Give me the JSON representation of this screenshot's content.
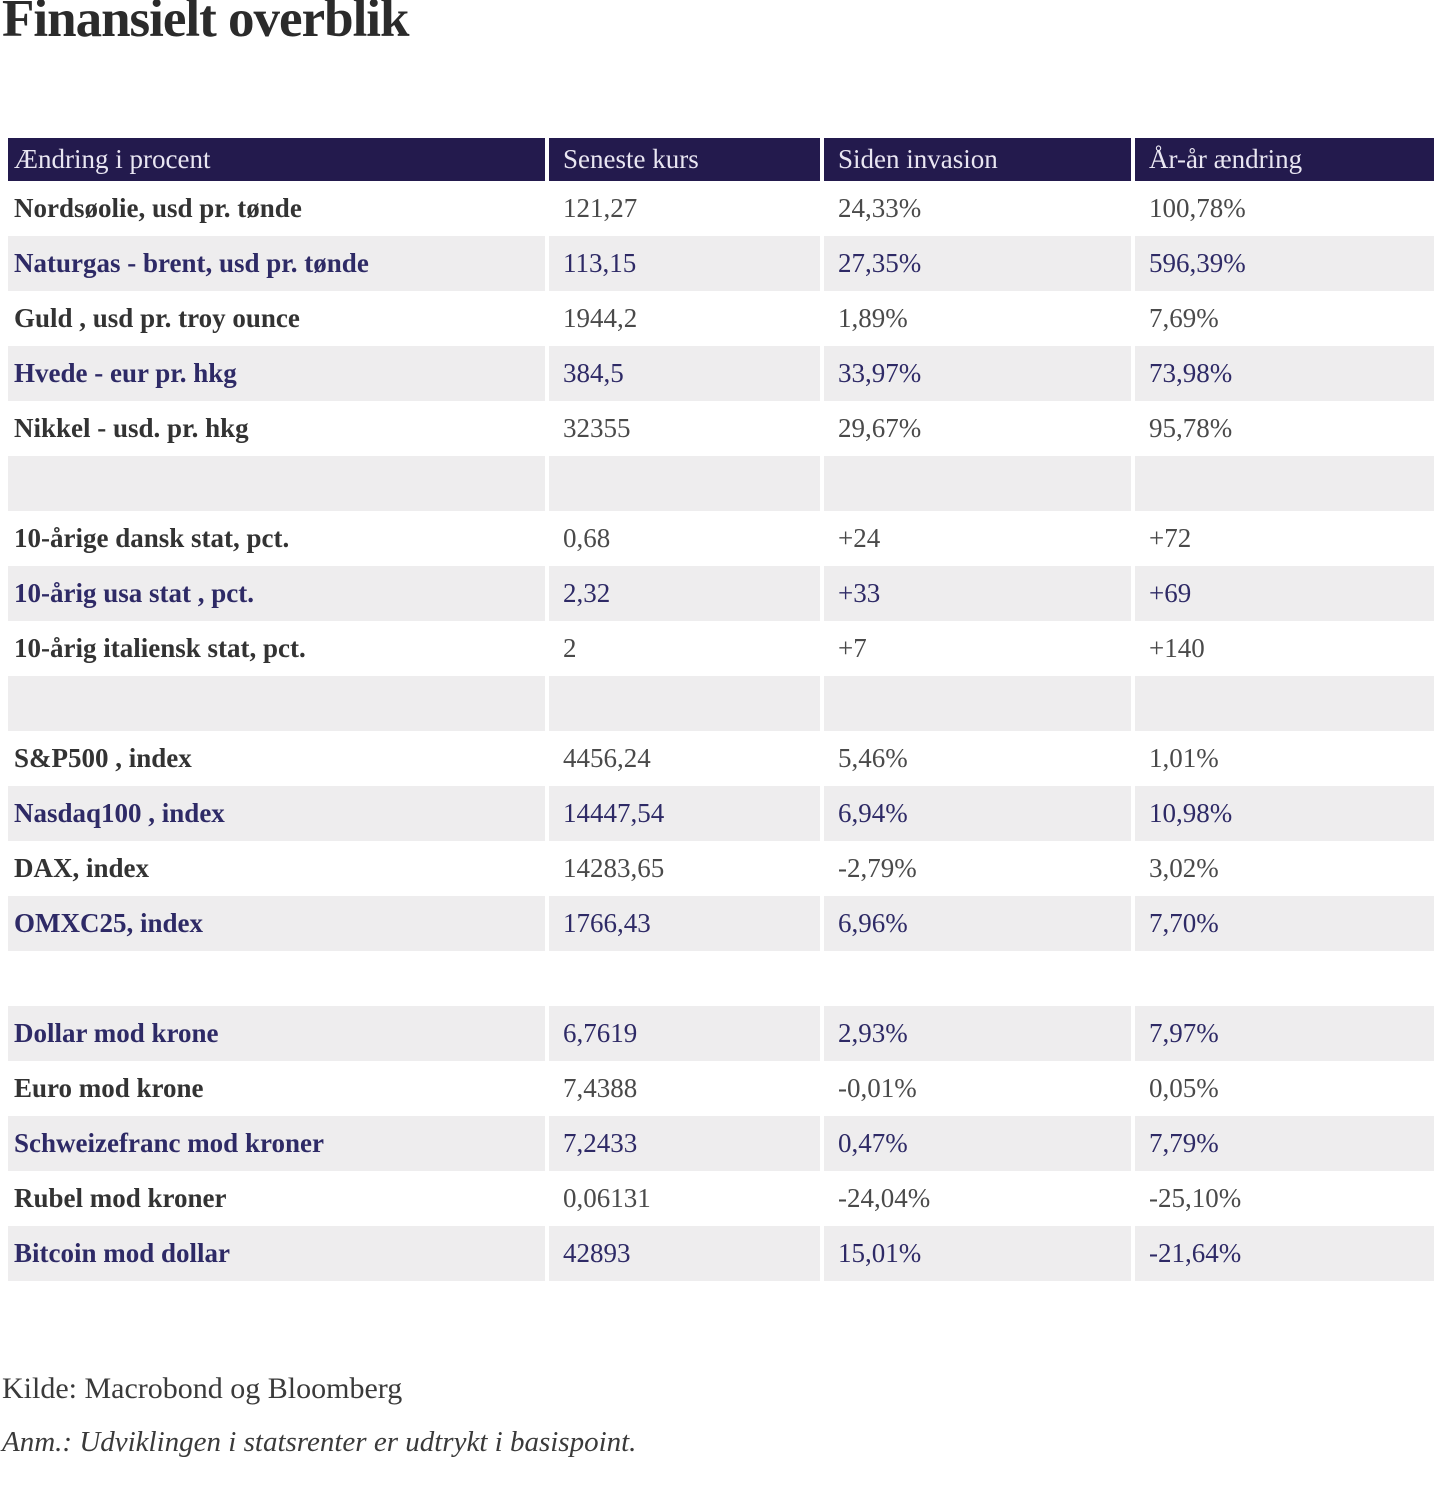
{
  "page": {
    "title": "Finansielt overblik"
  },
  "chart_data": {
    "type": "table",
    "title": "Finansielt overblik",
    "columns": [
      "Ændring i procent",
      "Seneste kurs",
      "Siden invasion",
      "År-år ændring"
    ],
    "rows": [
      {
        "label": "Nordsøolie, usd pr. tønde",
        "kurs": "121,27",
        "invasion": "24,33%",
        "aar": "100,78%"
      },
      {
        "label": "Naturgas - brent, usd pr. tønde",
        "kurs": "113,15",
        "invasion": "27,35%",
        "aar": "596,39%"
      },
      {
        "label": "Guld , usd pr. troy ounce",
        "kurs": "1944,2",
        "invasion": "1,89%",
        "aar": "7,69%"
      },
      {
        "label": "Hvede - eur pr. hkg",
        "kurs": "384,5",
        "invasion": "33,97%",
        "aar": "73,98%"
      },
      {
        "label": "Nikkel - usd. pr. hkg",
        "kurs": "32355",
        "invasion": "29,67%",
        "aar": "95,78%"
      },
      {
        "spacer": true
      },
      {
        "label": "10-årige dansk stat, pct.",
        "kurs": "0,68",
        "invasion": "+24",
        "aar": "+72"
      },
      {
        "label": "10-årig usa stat , pct.",
        "kurs": "2,32",
        "invasion": "+33",
        "aar": "+69"
      },
      {
        "label": "10-årig italiensk stat, pct.",
        "kurs": "2",
        "invasion": "+7",
        "aar": "+140"
      },
      {
        "spacer": true
      },
      {
        "label": "S&P500 , index",
        "kurs": "4456,24",
        "invasion": "5,46%",
        "aar": "1,01%"
      },
      {
        "label": "Nasdaq100 , index",
        "kurs": "14447,54",
        "invasion": "6,94%",
        "aar": "10,98%"
      },
      {
        "label": "DAX, index",
        "kurs": "14283,65",
        "invasion": "-2,79%",
        "aar": "3,02%"
      },
      {
        "label": "OMXC25, index",
        "kurs": "1766,43",
        "invasion": "6,96%",
        "aar": "7,70%"
      },
      {
        "spacer": true
      },
      {
        "label": "Dollar mod krone",
        "kurs": "6,7619",
        "invasion": "2,93%",
        "aar": "7,97%"
      },
      {
        "label": "Euro mod krone",
        "kurs": "7,4388",
        "invasion": "-0,01%",
        "aar": "0,05%"
      },
      {
        "label": "Schweizefranc mod kroner",
        "kurs": "7,2433",
        "invasion": "0,47%",
        "aar": "7,79%"
      },
      {
        "label": "Rubel mod kroner",
        "kurs": "0,06131",
        "invasion": "-24,04%",
        "aar": "-25,10%"
      },
      {
        "label": "Bitcoin mod dollar",
        "kurs": "42893",
        "invasion": "15,01%",
        "aar": "-21,64%"
      }
    ],
    "source": "Kilde: Macrobond og Bloomberg",
    "note": "Anm.: Udviklingen i statsrenter er udtrykt i basispoint."
  },
  "colors": {
    "header_bg": "#231a4d",
    "header_text": "#e9e6f2",
    "alt_row_bg": "#eeedee",
    "navy_text": "#2e2a66",
    "dark_text": "#333333",
    "value_text": "#4a4a4a"
  }
}
